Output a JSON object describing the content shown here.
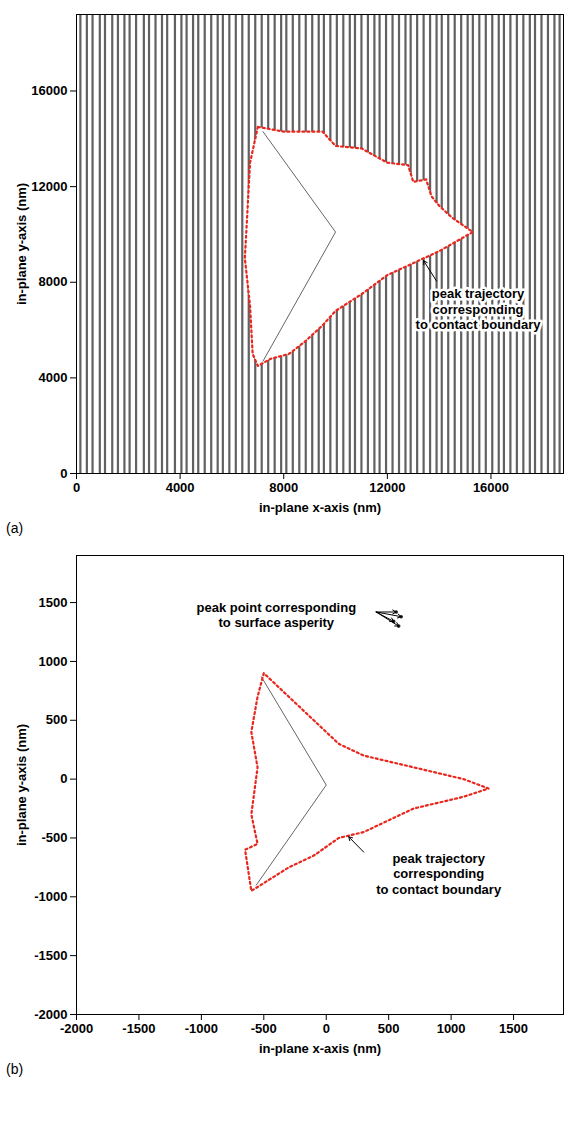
{
  "chart_data": [
    {
      "type": "line",
      "panel": "(a)",
      "xlabel": "in-plane x-axis (nm)",
      "ylabel": "in-plane y-axis (nm)",
      "xlim": [
        0,
        18800
      ],
      "ylim": [
        0,
        19200
      ],
      "xticks": [
        0,
        4000,
        8000,
        12000,
        16000
      ],
      "yticks": [
        0,
        4000,
        8000,
        12000,
        16000
      ],
      "grid": false,
      "scan_lines": {
        "color": "#3a3a3a",
        "x": [
          150,
          400,
          620,
          900,
          1100,
          1380,
          1600,
          1850,
          2050,
          2300,
          2600,
          2800,
          3050,
          3300,
          3500,
          3800,
          4050,
          4250,
          4500,
          4700,
          4950,
          5200,
          5450,
          5650,
          5900,
          6150,
          6400,
          6650,
          6900,
          7150,
          7400,
          7650,
          7900,
          8100,
          8350,
          8600,
          8850,
          9100,
          9350,
          9550,
          9800,
          10050,
          10300,
          10550,
          10750,
          11000,
          11250,
          11500,
          11700,
          11950,
          12200,
          12450,
          12700,
          12900,
          13150,
          13400,
          13650,
          13900,
          14100,
          14350,
          14600,
          14850,
          15100,
          15300,
          15550,
          15800,
          16050,
          16300,
          16500,
          16750,
          17000,
          17250,
          17500,
          17700,
          17950,
          18200,
          18450,
          18650
        ]
      },
      "boundary": {
        "color": "#e8281e",
        "line_style": "dotted",
        "x": [
          7000,
          8000,
          9500,
          10000,
          11000,
          12000,
          12800,
          13000,
          13500,
          13700,
          14000,
          14500,
          15300,
          14000,
          13000,
          12000,
          11000,
          10000,
          9500,
          8800,
          8200,
          7500,
          7000,
          6800,
          6700,
          6500,
          6600,
          6700
        ],
        "y": [
          14500,
          14300,
          14300,
          13700,
          13600,
          13000,
          12900,
          12200,
          12300,
          11600,
          11200,
          10700,
          10100,
          9300,
          8800,
          8300,
          7500,
          6800,
          6200,
          5500,
          5000,
          4800,
          4500,
          5000,
          7000,
          9000,
          11000,
          13000
        ]
      },
      "indenter": {
        "color": "#666666",
        "x": [
          7200,
          10000,
          7200
        ],
        "y": [
          14300,
          10100,
          4700
        ]
      },
      "annotations": [
        {
          "text": [
            "peak trajectory",
            "corresponding",
            "to contact boundary"
          ],
          "x": 15500,
          "y": 6900,
          "arrow_from": [
            13900,
            8050
          ],
          "arrow_to": [
            [
              13400,
              8900
            ]
          ]
        }
      ]
    },
    {
      "type": "line",
      "panel": "(b)",
      "xlabel": "in-plane x-axis (nm)",
      "ylabel": "in-plane y-axis (nm)",
      "xlim": [
        -2000,
        1900
      ],
      "ylim": [
        -2000,
        1900
      ],
      "xticks": [
        -2000,
        -1500,
        -1000,
        -500,
        0,
        500,
        1000,
        1500
      ],
      "yticks": [
        -2000,
        -1500,
        -1000,
        -500,
        0,
        500,
        1000,
        1500
      ],
      "grid": false,
      "boundary": {
        "color": "#e8281e",
        "line_style": "dotted",
        "x": [
          -500,
          -550,
          -600,
          -550,
          -600,
          -550,
          -650,
          -600,
          -450,
          -300,
          -100,
          100,
          300,
          500,
          700,
          900,
          1100,
          1300,
          1100,
          900,
          700,
          500,
          300,
          100,
          -100,
          -300
        ],
        "y": [
          900,
          700,
          400,
          100,
          -300,
          -550,
          -600,
          -950,
          -850,
          -750,
          -650,
          -500,
          -450,
          -350,
          -250,
          -200,
          -150,
          -80,
          0,
          50,
          100,
          150,
          200,
          300,
          500,
          700
        ]
      },
      "indenter": {
        "color": "#666666",
        "x": [
          -520,
          0,
          -560
        ],
        "y": [
          870,
          -50,
          -900
        ]
      },
      "asperity_peaks": {
        "marker": "dot",
        "color": "#222222",
        "x": [
          560,
          600,
          540,
          580
        ],
        "y": [
          1420,
          1380,
          1340,
          1300
        ]
      },
      "annotations": [
        {
          "text": [
            "peak point corresponding",
            "to surface asperity"
          ],
          "x": -400,
          "y": 1400,
          "arrow_from": [
            400,
            1420
          ],
          "arrow_to": [
            [
              560,
              1420
            ],
            [
              600,
              1380
            ],
            [
              540,
              1340
            ],
            [
              580,
              1300
            ]
          ]
        },
        {
          "text": [
            "peak trajectory",
            "corresponding",
            "to contact boundary"
          ],
          "x": 900,
          "y": -800,
          "arrow_from": [
            300,
            -620
          ],
          "arrow_to": [
            [
              180,
              -490
            ]
          ]
        }
      ]
    }
  ]
}
